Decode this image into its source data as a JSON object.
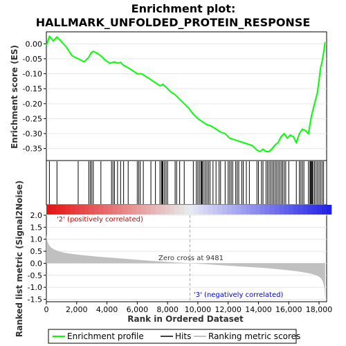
{
  "chart_data": [
    {
      "type": "line",
      "title_line1": "Enrichment plot:",
      "title_line2": "HALLMARK_UNFOLDED_PROTEIN_RESPONSE",
      "ylabel": "Enrichment score (ES)",
      "xlim": [
        0,
        18500
      ],
      "ylim": [
        -0.39,
        0.04
      ],
      "y_ticks": [
        0.0,
        -0.05,
        -0.1,
        -0.15,
        -0.2,
        -0.25,
        -0.3,
        -0.35
      ],
      "y_tick_labels": [
        "0.00",
        "-0.05",
        "-0.10",
        "-0.15",
        "-0.20",
        "-0.25",
        "-0.30",
        "-0.35"
      ],
      "series": [
        {
          "name": "Enrichment profile",
          "color": "#00ff00",
          "x": [
            0,
            200,
            450,
            700,
            950,
            1300,
            1700,
            2100,
            2500,
            2800,
            2950,
            3100,
            3300,
            3600,
            3900,
            4200,
            4500,
            4700,
            4900,
            5100,
            5400,
            5700,
            6000,
            6300,
            6600,
            6900,
            7200,
            7500,
            7700,
            7900,
            8200,
            8500,
            8800,
            9100,
            9400,
            9700,
            10000,
            10300,
            10600,
            10900,
            11200,
            11500,
            11800,
            12100,
            12400,
            12700,
            13000,
            13300,
            13600,
            13900,
            14100,
            14300,
            14500,
            14700,
            14900,
            15100,
            15300,
            15500,
            15700,
            15900,
            16100,
            16300,
            16500,
            16700,
            16900,
            17100,
            17300,
            17500,
            17600,
            17700,
            17800,
            17900,
            18000,
            18100,
            18200,
            18300,
            18400
          ],
          "y": [
            -0.005,
            0.025,
            0.01,
            0.023,
            0.01,
            -0.01,
            -0.04,
            -0.05,
            -0.06,
            -0.045,
            -0.03,
            -0.025,
            -0.03,
            -0.04,
            -0.055,
            -0.065,
            -0.06,
            -0.065,
            -0.062,
            -0.072,
            -0.08,
            -0.09,
            -0.1,
            -0.1,
            -0.11,
            -0.12,
            -0.13,
            -0.14,
            -0.135,
            -0.145,
            -0.16,
            -0.17,
            -0.185,
            -0.2,
            -0.215,
            -0.235,
            -0.25,
            -0.26,
            -0.27,
            -0.275,
            -0.285,
            -0.295,
            -0.3,
            -0.315,
            -0.32,
            -0.325,
            -0.33,
            -0.335,
            -0.34,
            -0.355,
            -0.36,
            -0.352,
            -0.36,
            -0.36,
            -0.35,
            -0.338,
            -0.33,
            -0.31,
            -0.3,
            -0.315,
            -0.305,
            -0.31,
            -0.33,
            -0.3,
            -0.285,
            -0.29,
            -0.3,
            -0.24,
            -0.22,
            -0.2,
            -0.18,
            -0.16,
            -0.12,
            -0.08,
            -0.06,
            -0.03,
            0.005
          ]
        }
      ]
    },
    {
      "type": "barcode",
      "name": "Hits",
      "hit_positions": [
        200,
        700,
        2100,
        2800,
        2900,
        3000,
        3100,
        3600,
        4300,
        4400,
        4500,
        4700,
        4900,
        5100,
        5400,
        6000,
        6100,
        6200,
        6400,
        6900,
        7200,
        7500,
        7600,
        7650,
        7700,
        7800,
        7900,
        8000,
        8500,
        8600,
        8800,
        9100,
        9700,
        9900,
        10000,
        10100,
        10200,
        10250,
        10300,
        10400,
        10500,
        10600,
        10700,
        10800,
        11000,
        11200,
        11400,
        11500,
        11800,
        12000,
        12100,
        12200,
        12300,
        12500,
        12600,
        12700,
        12900,
        13000,
        13200,
        13400,
        13900,
        14000,
        14200,
        14300,
        14500,
        14600,
        14700,
        14800,
        14900,
        15000,
        15100,
        15200,
        15300,
        15400,
        15500,
        15600,
        15700,
        15800,
        16000,
        16500,
        16700,
        16800,
        16900,
        17000,
        17300,
        17400,
        17450,
        17500,
        17550,
        17600,
        17700,
        17800,
        17900,
        18000,
        18100,
        18200,
        18300
      ]
    },
    {
      "type": "area",
      "name": "Ranking metric scores",
      "ylabel": "Ranked list metric (Signal2Noise)",
      "xlabel": "Rank in Ordered Dataset",
      "xlim": [
        0,
        18500
      ],
      "ylim": [
        -1.6,
        2.0
      ],
      "y_ticks": [
        2.0,
        1.5,
        1.0,
        0.5,
        0.0,
        -0.5,
        -1.0,
        -1.5
      ],
      "y_tick_labels": [
        "2.0",
        "1.5",
        "1.0",
        "0.5",
        "0.0",
        "-0.5",
        "-1.0",
        "-1.5"
      ],
      "x_ticks": [
        0,
        2000,
        4000,
        6000,
        8000,
        10000,
        12000,
        14000,
        16000,
        18000
      ],
      "x_tick_labels": [
        "0",
        "2,000",
        "4,000",
        "6,000",
        "8,000",
        "10,000",
        "12,000",
        "14,000",
        "16,000",
        "18,000"
      ],
      "color": "#c0c0c0",
      "x": [
        0,
        50,
        150,
        300,
        500,
        800,
        1200,
        1800,
        2500,
        3500,
        4500,
        5500,
        6500,
        7500,
        8500,
        9481,
        10500,
        11500,
        12500,
        13500,
        14500,
        15500,
        16500,
        17000,
        17500,
        17800,
        18000,
        18150,
        18250,
        18350,
        18400
      ],
      "y": [
        1.2,
        0.95,
        0.78,
        0.66,
        0.58,
        0.5,
        0.44,
        0.38,
        0.33,
        0.27,
        0.22,
        0.17,
        0.12,
        0.08,
        0.04,
        0.0,
        -0.04,
        -0.08,
        -0.12,
        -0.16,
        -0.2,
        -0.26,
        -0.33,
        -0.38,
        -0.44,
        -0.5,
        -0.56,
        -0.64,
        -0.75,
        -1.0,
        -1.45
      ],
      "zero_cross_label": "Zero cross at 9481",
      "zero_cross_x": 9481,
      "pos_label": "'2' (positively correlated)",
      "neg_label": "'3' (negatively correlated)"
    }
  ],
  "legend": {
    "items": [
      {
        "label": "Enrichment profile",
        "color": "#00ff00"
      },
      {
        "label": "Hits",
        "color": "#000000"
      },
      {
        "label": "Ranking metric scores",
        "color": "#c0c0c0"
      }
    ]
  }
}
